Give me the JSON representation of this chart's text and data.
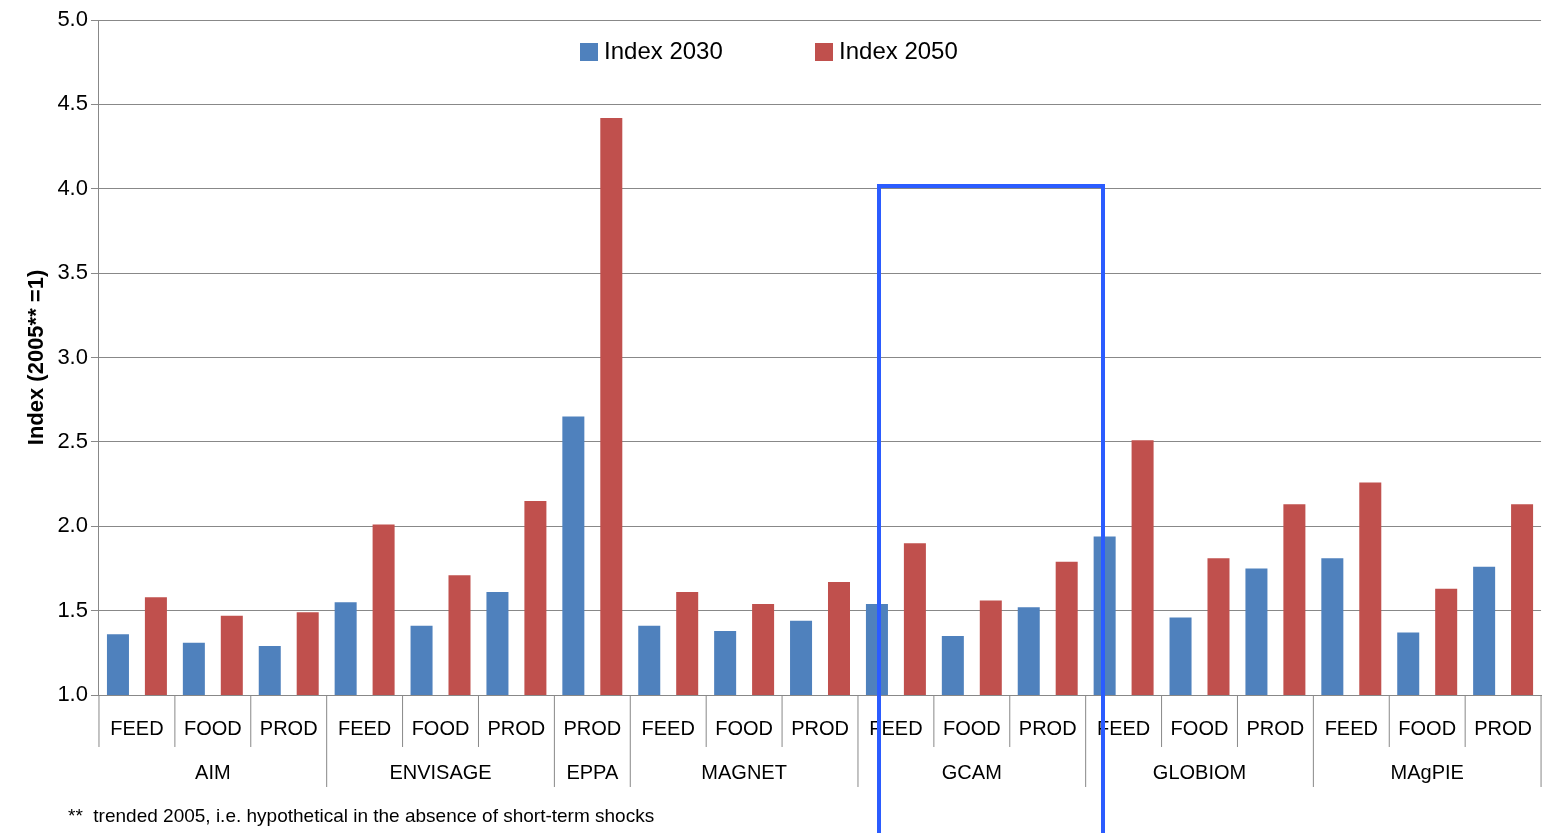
{
  "chart_data": {
    "type": "bar",
    "ylabel": "Index (2005** =1)",
    "categories": [
      "FEED",
      "FOOD",
      "PROD",
      "FEED",
      "FOOD",
      "PROD",
      "PROD",
      "FEED",
      "FOOD",
      "PROD",
      "FEED",
      "FOOD",
      "PROD",
      "FEED",
      "FOOD",
      "PROD",
      "FEED",
      "FOOD",
      "PROD"
    ],
    "series": [
      {
        "name": "Index 2030",
        "color": "#4f81bd",
        "values": [
          1.36,
          1.31,
          1.29,
          1.55,
          1.41,
          1.61,
          2.65,
          1.41,
          1.38,
          1.44,
          1.54,
          1.35,
          1.52,
          1.94,
          1.46,
          1.75,
          1.81,
          1.37,
          1.76
        ]
      },
      {
        "name": "Index 2050",
        "color": "#c0504d",
        "values": [
          1.58,
          1.47,
          1.49,
          2.01,
          1.71,
          2.15,
          4.42,
          1.61,
          1.54,
          1.67,
          1.9,
          1.56,
          1.79,
          2.51,
          1.81,
          2.13,
          2.26,
          1.63,
          2.13
        ]
      }
    ],
    "annotations": [
      "AIM",
      "ENVISAGE",
      "EPPA",
      "MAGNET",
      "GCAM",
      "GLOBIOM",
      "MAgPIE",
      "**  trended 2005, i.e. hypothetical in the absence of short-term shocks"
    ],
    "ylim": [
      1,
      5
    ],
    "yticks": [
      {
        "value": 1,
        "label": "1.0"
      },
      1.5,
      {
        "value": 2,
        "label": "2.0"
      },
      2.5,
      {
        "value": 3,
        "label": "3.0"
      },
      3.5,
      {
        "value": 4,
        "label": "4.0"
      },
      4.5,
      {
        "value": 5,
        "label": "5.0"
      }
    ],
    "grid": "y",
    "legend": "top"
  }
}
